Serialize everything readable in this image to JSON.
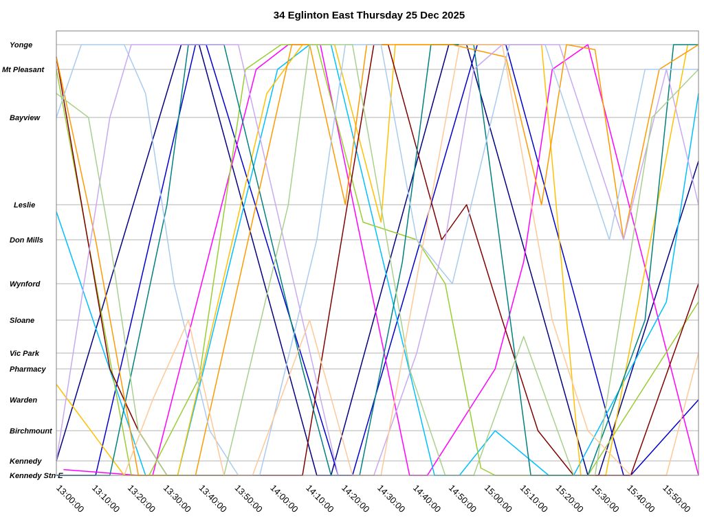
{
  "chart_data": {
    "type": "line",
    "title": "34 Eglinton East Thursday 25 Dec 2025",
    "xlabel": "",
    "ylabel": "",
    "x_axis": {
      "unit": "time of day",
      "range": [
        "12:59:00",
        "15:59:00"
      ],
      "ticks": [
        "13:00:00",
        "13:10:00",
        "13:20:00",
        "13:30:00",
        "13:40:00",
        "13:50:00",
        "14:00:00",
        "14:10:00",
        "14:20:00",
        "14:30:00",
        "14:40:00",
        "14:50:00",
        "15:00:00",
        "15:10:00",
        "15:20:00",
        "15:30:00",
        "15:40:00",
        "15:50:00"
      ]
    },
    "y_axis": {
      "unit": "stop (west at top, east at bottom)",
      "stops": [
        "Yonge",
        "Mt Pleasant",
        "Bayview",
        "Leslie",
        "Don Mills",
        "Wynford",
        "Sloane",
        "Vic Park",
        "Pharmacy",
        "Warden",
        "Birchmount",
        "Kennedy",
        "Kennedy Stn E"
      ]
    },
    "grid": true,
    "legend": "none",
    "series_colors": [
      "#000080",
      "#FF00FF",
      "#00BFFF",
      "#9ACD32",
      "#FFC000",
      "#800000",
      "#008080",
      "#FF9900",
      "#0000CD",
      "#A9CBF0",
      "#C9A9F0",
      "#A8D08D",
      "#FFC896"
    ],
    "series": [
      {
        "color": "#000080",
        "points": [
          [
            "12:59:00",
            11
          ],
          [
            "13:34:00",
            0
          ],
          [
            "13:39:00",
            0
          ],
          [
            "14:12:00",
            12
          ],
          [
            "14:16:00",
            12
          ],
          [
            "14:49:00",
            0
          ],
          [
            "14:54:00",
            0
          ],
          [
            "15:28:00",
            12
          ],
          [
            "15:31:00",
            12
          ],
          [
            "15:59:00",
            2.5
          ]
        ]
      },
      {
        "color": "#0000CD",
        "points": [
          [
            "12:59:00",
            12
          ],
          [
            "13:10:00",
            12
          ],
          [
            "13:38:00",
            0
          ],
          [
            "13:41:00",
            0
          ],
          [
            "14:18:00",
            12
          ],
          [
            "14:22:00",
            12
          ],
          [
            "14:57:00",
            0
          ],
          [
            "15:05:00",
            0
          ],
          [
            "15:38:00",
            12
          ],
          [
            "15:40:00",
            12
          ],
          [
            "15:59:00",
            9
          ]
        ]
      },
      {
        "color": "#FF00FF",
        "points": [
          [
            "13:01:00",
            11.6
          ],
          [
            "13:22:00",
            12
          ],
          [
            "13:26:00",
            12
          ],
          [
            "13:55:00",
            1
          ],
          [
            "14:04:00",
            0
          ],
          [
            "14:13:00",
            0
          ],
          [
            "14:38:00",
            12
          ],
          [
            "14:43:00",
            12
          ],
          [
            "15:02:00",
            8
          ],
          [
            "15:10:00",
            4.5
          ],
          [
            "15:18:00",
            1
          ],
          [
            "15:28:00",
            0
          ],
          [
            "15:59:00",
            12
          ]
        ]
      },
      {
        "color": "#00BFFF",
        "points": [
          [
            "12:59:00",
            3.2
          ],
          [
            "13:24:00",
            12
          ],
          [
            "13:33:00",
            12
          ],
          [
            "14:01:00",
            1
          ],
          [
            "14:10:00",
            0
          ],
          [
            "14:16:00",
            0
          ],
          [
            "14:45:00",
            12
          ],
          [
            "14:52:00",
            12
          ],
          [
            "15:02:00",
            10
          ],
          [
            "15:17:00",
            12
          ],
          [
            "15:24:00",
            12
          ],
          [
            "15:50:00",
            5.5
          ],
          [
            "15:59:00",
            1.5
          ]
        ]
      },
      {
        "color": "#9ACD32",
        "points": [
          [
            "12:59:00",
            1
          ],
          [
            "13:20:00",
            12
          ],
          [
            "13:25:00",
            12
          ],
          [
            "13:39:00",
            8.3
          ],
          [
            "13:52:00",
            1
          ],
          [
            "14:02:00",
            0
          ],
          [
            "14:12:00",
            0
          ],
          [
            "14:25:00",
            3.5
          ],
          [
            "14:40:00",
            4
          ],
          [
            "14:48:00",
            5
          ],
          [
            "14:58:00",
            11.5
          ],
          [
            "15:02:00",
            12
          ],
          [
            "15:28:00",
            12
          ],
          [
            "15:59:00",
            5.5
          ]
        ]
      },
      {
        "color": "#FFC000",
        "points": [
          [
            "12:59:00",
            8.5
          ],
          [
            "13:18:00",
            12
          ],
          [
            "13:33:00",
            12
          ],
          [
            "13:58:00",
            1.5
          ],
          [
            "14:08:00",
            0
          ],
          [
            "14:17:00",
            0
          ],
          [
            "14:30:00",
            3.5
          ],
          [
            "14:34:00",
            0
          ],
          [
            "14:44:00",
            0
          ],
          [
            "14:55:00",
            0
          ],
          [
            "15:00:00",
            0
          ],
          [
            "15:15:00",
            0
          ],
          [
            "15:26:00",
            12
          ],
          [
            "15:33:00",
            12
          ],
          [
            "15:56:00",
            0
          ]
        ]
      },
      {
        "color": "#800000",
        "points": [
          [
            "12:59:00",
            0.5
          ],
          [
            "13:14:00",
            8
          ],
          [
            "13:22:00",
            10
          ],
          [
            "13:30:00",
            12
          ],
          [
            "13:45:00",
            12
          ],
          [
            "14:08:00",
            12
          ],
          [
            "14:28:00",
            0
          ],
          [
            "14:32:00",
            0
          ],
          [
            "14:47:00",
            4
          ],
          [
            "14:54:00",
            3
          ],
          [
            "15:04:00",
            6
          ],
          [
            "15:14:00",
            10
          ],
          [
            "15:24:00",
            12
          ],
          [
            "15:40:00",
            12
          ],
          [
            "15:59:00",
            5
          ]
        ]
      },
      {
        "color": "#008080",
        "points": [
          [
            "12:59:00",
            12
          ],
          [
            "13:14:00",
            12
          ],
          [
            "13:30:00",
            3
          ],
          [
            "13:36:00",
            0
          ],
          [
            "13:46:00",
            0
          ],
          [
            "14:08:00",
            8
          ],
          [
            "14:16:00",
            12
          ],
          [
            "14:24:00",
            12
          ],
          [
            "14:36:00",
            4.5
          ],
          [
            "14:44:00",
            0
          ],
          [
            "14:56:00",
            0
          ],
          [
            "15:12:00",
            12
          ],
          [
            "15:28:00",
            12
          ],
          [
            "15:44:00",
            6
          ],
          [
            "15:52:00",
            0
          ],
          [
            "15:59:00",
            0
          ]
        ]
      },
      {
        "color": "#FF9900",
        "points": [
          [
            "12:59:00",
            0.5
          ],
          [
            "13:10:00",
            4
          ],
          [
            "13:22:00",
            12
          ],
          [
            "13:38:00",
            12
          ],
          [
            "14:05:00",
            0
          ],
          [
            "14:10:00",
            0
          ],
          [
            "14:20:00",
            3
          ],
          [
            "14:26:00",
            0
          ],
          [
            "14:50:00",
            0
          ],
          [
            "15:05:00",
            0.5
          ],
          [
            "15:15:00",
            3
          ],
          [
            "15:22:00",
            0
          ],
          [
            "15:30:00",
            0.2
          ],
          [
            "15:38:00",
            4
          ],
          [
            "15:48:00",
            1
          ],
          [
            "15:59:00",
            0
          ]
        ]
      },
      {
        "color": "#A9CBF0",
        "points": [
          [
            "12:59:00",
            2
          ],
          [
            "13:06:00",
            0
          ],
          [
            "13:18:00",
            0
          ],
          [
            "13:24:00",
            1.5
          ],
          [
            "13:32:00",
            5
          ],
          [
            "13:42:00",
            10
          ],
          [
            "13:50:00",
            12
          ],
          [
            "13:56:00",
            12
          ],
          [
            "14:12:00",
            4
          ],
          [
            "14:20:00",
            0
          ],
          [
            "14:30:00",
            0
          ],
          [
            "14:40:00",
            4
          ],
          [
            "14:50:00",
            5
          ],
          [
            "15:06:00",
            0
          ],
          [
            "15:16:00",
            0
          ],
          [
            "15:34:00",
            4
          ],
          [
            "15:44:00",
            1
          ],
          [
            "15:59:00",
            1
          ]
        ]
      },
      {
        "color": "#C9A9F0",
        "points": [
          [
            "12:59:00",
            11
          ],
          [
            "13:14:00",
            2
          ],
          [
            "13:20:00",
            0
          ],
          [
            "13:50:00",
            0
          ],
          [
            "14:08:00",
            6
          ],
          [
            "14:18:00",
            12
          ],
          [
            "14:28:00",
            12
          ],
          [
            "14:40:00",
            7
          ],
          [
            "14:48:00",
            4
          ],
          [
            "14:56:00",
            1
          ],
          [
            "15:04:00",
            0
          ],
          [
            "15:20:00",
            0
          ],
          [
            "15:38:00",
            4
          ],
          [
            "15:50:00",
            1
          ],
          [
            "15:59:00",
            3
          ]
        ]
      },
      {
        "color": "#A8D08D",
        "points": [
          [
            "12:59:00",
            1.5
          ],
          [
            "13:08:00",
            2
          ],
          [
            "13:14:00",
            4
          ],
          [
            "13:22:00",
            10
          ],
          [
            "13:30:00",
            12
          ],
          [
            "13:46:00",
            12
          ],
          [
            "14:04:00",
            3
          ],
          [
            "14:10:00",
            0
          ],
          [
            "14:22:00",
            0
          ],
          [
            "14:38:00",
            8
          ],
          [
            "14:48:00",
            12
          ],
          [
            "14:56:00",
            12
          ],
          [
            "15:10:00",
            6.5
          ],
          [
            "15:24:00",
            12
          ],
          [
            "15:30:00",
            12
          ],
          [
            "15:46:00",
            2
          ],
          [
            "15:59:00",
            1
          ]
        ]
      },
      {
        "color": "#FFC896",
        "points": [
          [
            "13:18:00",
            12
          ],
          [
            "13:26:00",
            9
          ],
          [
            "13:36:00",
            6
          ],
          [
            "13:46:00",
            12
          ],
          [
            "13:54:00",
            12
          ],
          [
            "14:10:00",
            6
          ],
          [
            "14:22:00",
            12
          ],
          [
            "14:30:00",
            12
          ],
          [
            "14:42:00",
            4
          ],
          [
            "14:52:00",
            0
          ],
          [
            "15:04:00",
            0
          ],
          [
            "15:18:00",
            6
          ],
          [
            "15:28:00",
            10
          ],
          [
            "15:40:00",
            12
          ],
          [
            "15:50:00",
            12
          ],
          [
            "15:59:00",
            7
          ]
        ]
      }
    ]
  }
}
